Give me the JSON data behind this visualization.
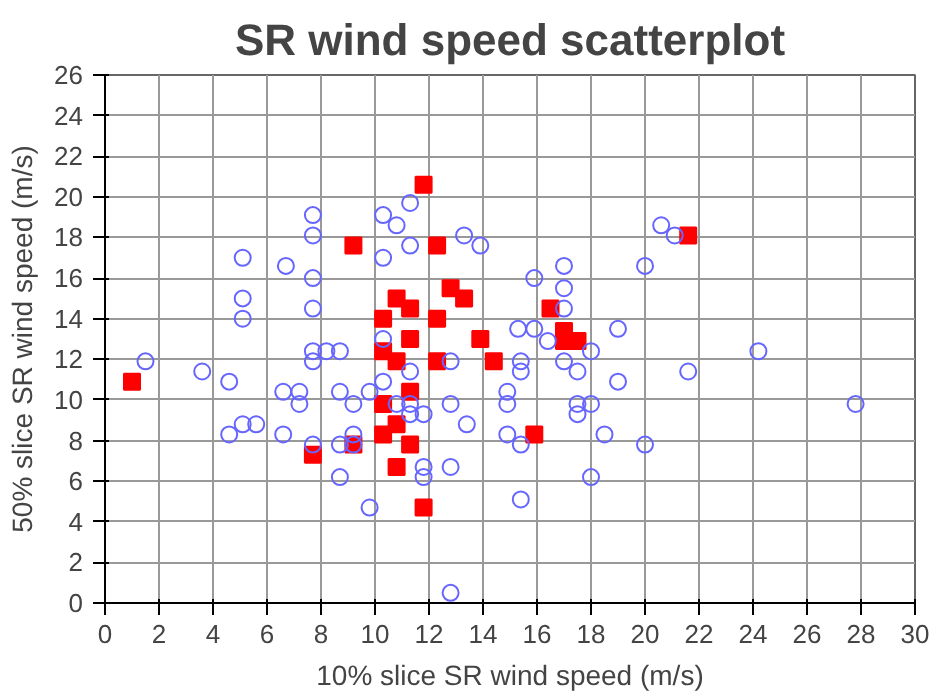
{
  "chart_data": {
    "type": "scatter",
    "title": "SR wind speed scatterplot",
    "xlabel": "10% slice SR wind speed (m/s)",
    "ylabel": "50% slice SR wind speed (m/s)",
    "xlim": [
      0,
      30
    ],
    "ylim": [
      0,
      26
    ],
    "xticks": [
      0,
      2,
      4,
      6,
      8,
      10,
      12,
      14,
      16,
      18,
      20,
      22,
      24,
      26,
      28,
      30
    ],
    "yticks": [
      0,
      2,
      4,
      6,
      8,
      10,
      12,
      14,
      16,
      18,
      20,
      22,
      24,
      26
    ],
    "grid": true,
    "series": [
      {
        "color": "#6666ff",
        "marker": "circle",
        "x": [
          7.7,
          10.3,
          11.3,
          10.8,
          7.7,
          5.1,
          11.3,
          13.3,
          13.9,
          6.7,
          10.3,
          7.7,
          5.1,
          7.7,
          5.1,
          10.3,
          15.3,
          20.6,
          21.1,
          17.0,
          20.0,
          15.9,
          17.0,
          17.0,
          15.9,
          19.0,
          16.4,
          18.0,
          24.2,
          15.4,
          15.4,
          17.0,
          17.5,
          21.6,
          19.0,
          14.9,
          14.9,
          17.5,
          18.0,
          17.5,
          27.8,
          14.9,
          15.4,
          18.5,
          20.0,
          18.0,
          15.4,
          1.5,
          3.6,
          4.6,
          7.7,
          8.2,
          8.7,
          7.7,
          12.8,
          11.3,
          10.3,
          6.6,
          7.2,
          7.2,
          8.7,
          9.2,
          9.8,
          10.8,
          11.3,
          11.3,
          11.8,
          12.8,
          13.4,
          4.6,
          5.1,
          5.6,
          6.6,
          7.7,
          8.7,
          9.2,
          9.2,
          8.7,
          9.8,
          11.8,
          11.8,
          12.8,
          12.8
        ],
        "values": [
          19.1,
          19.1,
          19.7,
          18.6,
          18.1,
          17.0,
          17.6,
          18.1,
          17.6,
          16.6,
          17.0,
          16.0,
          15.0,
          14.5,
          14.0,
          13.0,
          13.5,
          18.6,
          18.1,
          16.6,
          16.6,
          16.0,
          15.5,
          14.5,
          13.5,
          13.5,
          12.9,
          12.4,
          12.4,
          11.9,
          11.4,
          11.9,
          11.4,
          11.4,
          10.9,
          10.4,
          9.8,
          9.8,
          9.8,
          9.3,
          9.8,
          8.3,
          7.8,
          8.3,
          7.8,
          6.2,
          5.1,
          11.9,
          11.4,
          10.9,
          12.4,
          12.4,
          12.4,
          11.9,
          11.9,
          11.4,
          10.9,
          10.4,
          10.4,
          9.8,
          10.4,
          9.8,
          10.4,
          9.8,
          9.8,
          9.3,
          9.3,
          9.8,
          8.8,
          8.3,
          8.8,
          8.8,
          8.3,
          7.8,
          7.8,
          8.3,
          7.8,
          6.2,
          4.7,
          6.7,
          6.2,
          6.7,
          0.5
        ]
      },
      {
        "color": "#ff0000",
        "marker": "square",
        "x": [
          11.8,
          9.2,
          12.3,
          10.8,
          11.3,
          12.8,
          13.3,
          10.3,
          12.3,
          11.3,
          13.9,
          16.5,
          17.0,
          17.0,
          17.5,
          21.6,
          15.9,
          1.0,
          10.3,
          10.8,
          12.3,
          14.4,
          11.3,
          10.3,
          10.8,
          10.3,
          11.3,
          7.7,
          9.2,
          10.8,
          11.8
        ],
        "values": [
          20.6,
          17.6,
          17.6,
          15.0,
          14.5,
          15.5,
          15.0,
          14.0,
          14.0,
          13.0,
          13.0,
          14.5,
          13.4,
          12.9,
          12.9,
          18.1,
          8.3,
          10.9,
          12.4,
          11.9,
          11.9,
          11.9,
          10.4,
          9.8,
          8.8,
          8.3,
          7.8,
          7.3,
          7.8,
          6.7,
          4.7
        ]
      }
    ]
  }
}
